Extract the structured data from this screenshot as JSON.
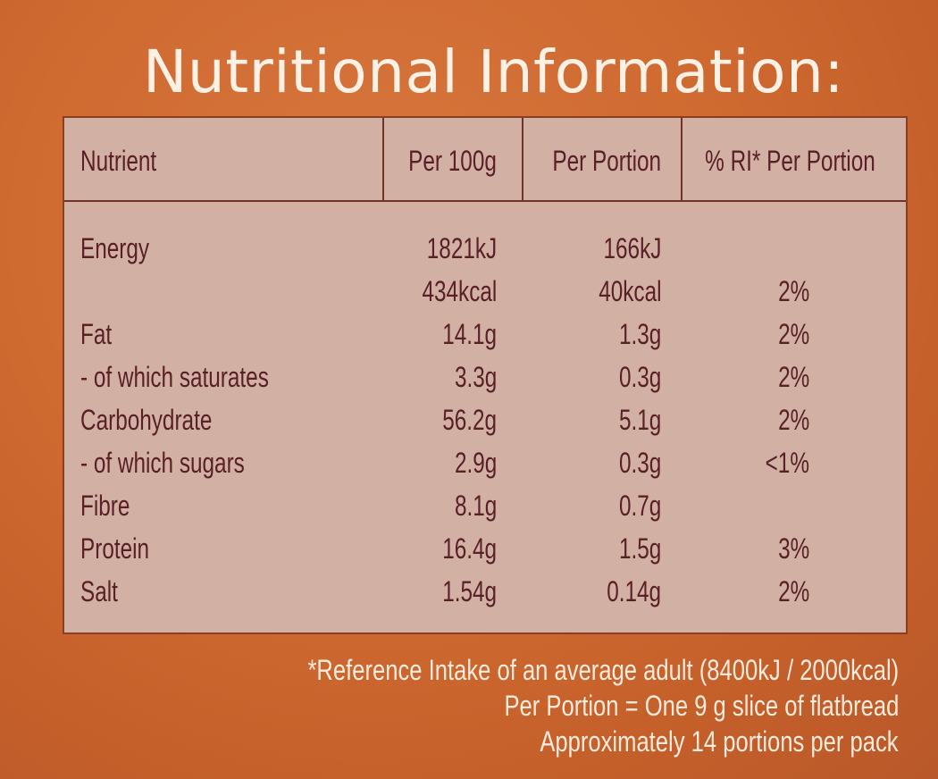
{
  "title": "Nutritional Information:",
  "table": {
    "headers": {
      "nutrient": "Nutrient",
      "per_100g": "Per 100g",
      "per_portion": "Per Portion",
      "ri": "% RI* Per Portion"
    },
    "rows": [
      {
        "nutrient": "Energy",
        "per_100g": "1821kJ",
        "per_portion": "166kJ",
        "ri": ""
      },
      {
        "nutrient": "",
        "per_100g": "434kcal",
        "per_portion": "40kcal",
        "ri": "2%"
      },
      {
        "nutrient": "Fat",
        "per_100g": "14.1g",
        "per_portion": "1.3g",
        "ri": "2%"
      },
      {
        "nutrient": "- of which saturates",
        "per_100g": "3.3g",
        "per_portion": "0.3g",
        "ri": "2%"
      },
      {
        "nutrient": "Carbohydrate",
        "per_100g": "56.2g",
        "per_portion": "5.1g",
        "ri": "2%"
      },
      {
        "nutrient": "- of which sugars",
        "per_100g": "2.9g",
        "per_portion": "0.3g",
        "ri": "<1%"
      },
      {
        "nutrient": "Fibre",
        "per_100g": "8.1g",
        "per_portion": "0.7g",
        "ri": ""
      },
      {
        "nutrient": "Protein",
        "per_100g": "16.4g",
        "per_portion": "1.5g",
        "ri": "3%"
      },
      {
        "nutrient": "Salt",
        "per_100g": "1.54g",
        "per_portion": "0.14g",
        "ri": "2%"
      }
    ]
  },
  "footnotes": [
    "*Reference Intake of an average adult (8400kJ / 2000kcal)",
    "Per Portion = One 9 g slice of flatbread",
    "Approximately 14 portions per pack"
  ],
  "colors": {
    "background": "#cf6a31",
    "panel": "#d2b1a4",
    "text_dark": "#5a2027",
    "text_light": "#fdf1e6"
  }
}
